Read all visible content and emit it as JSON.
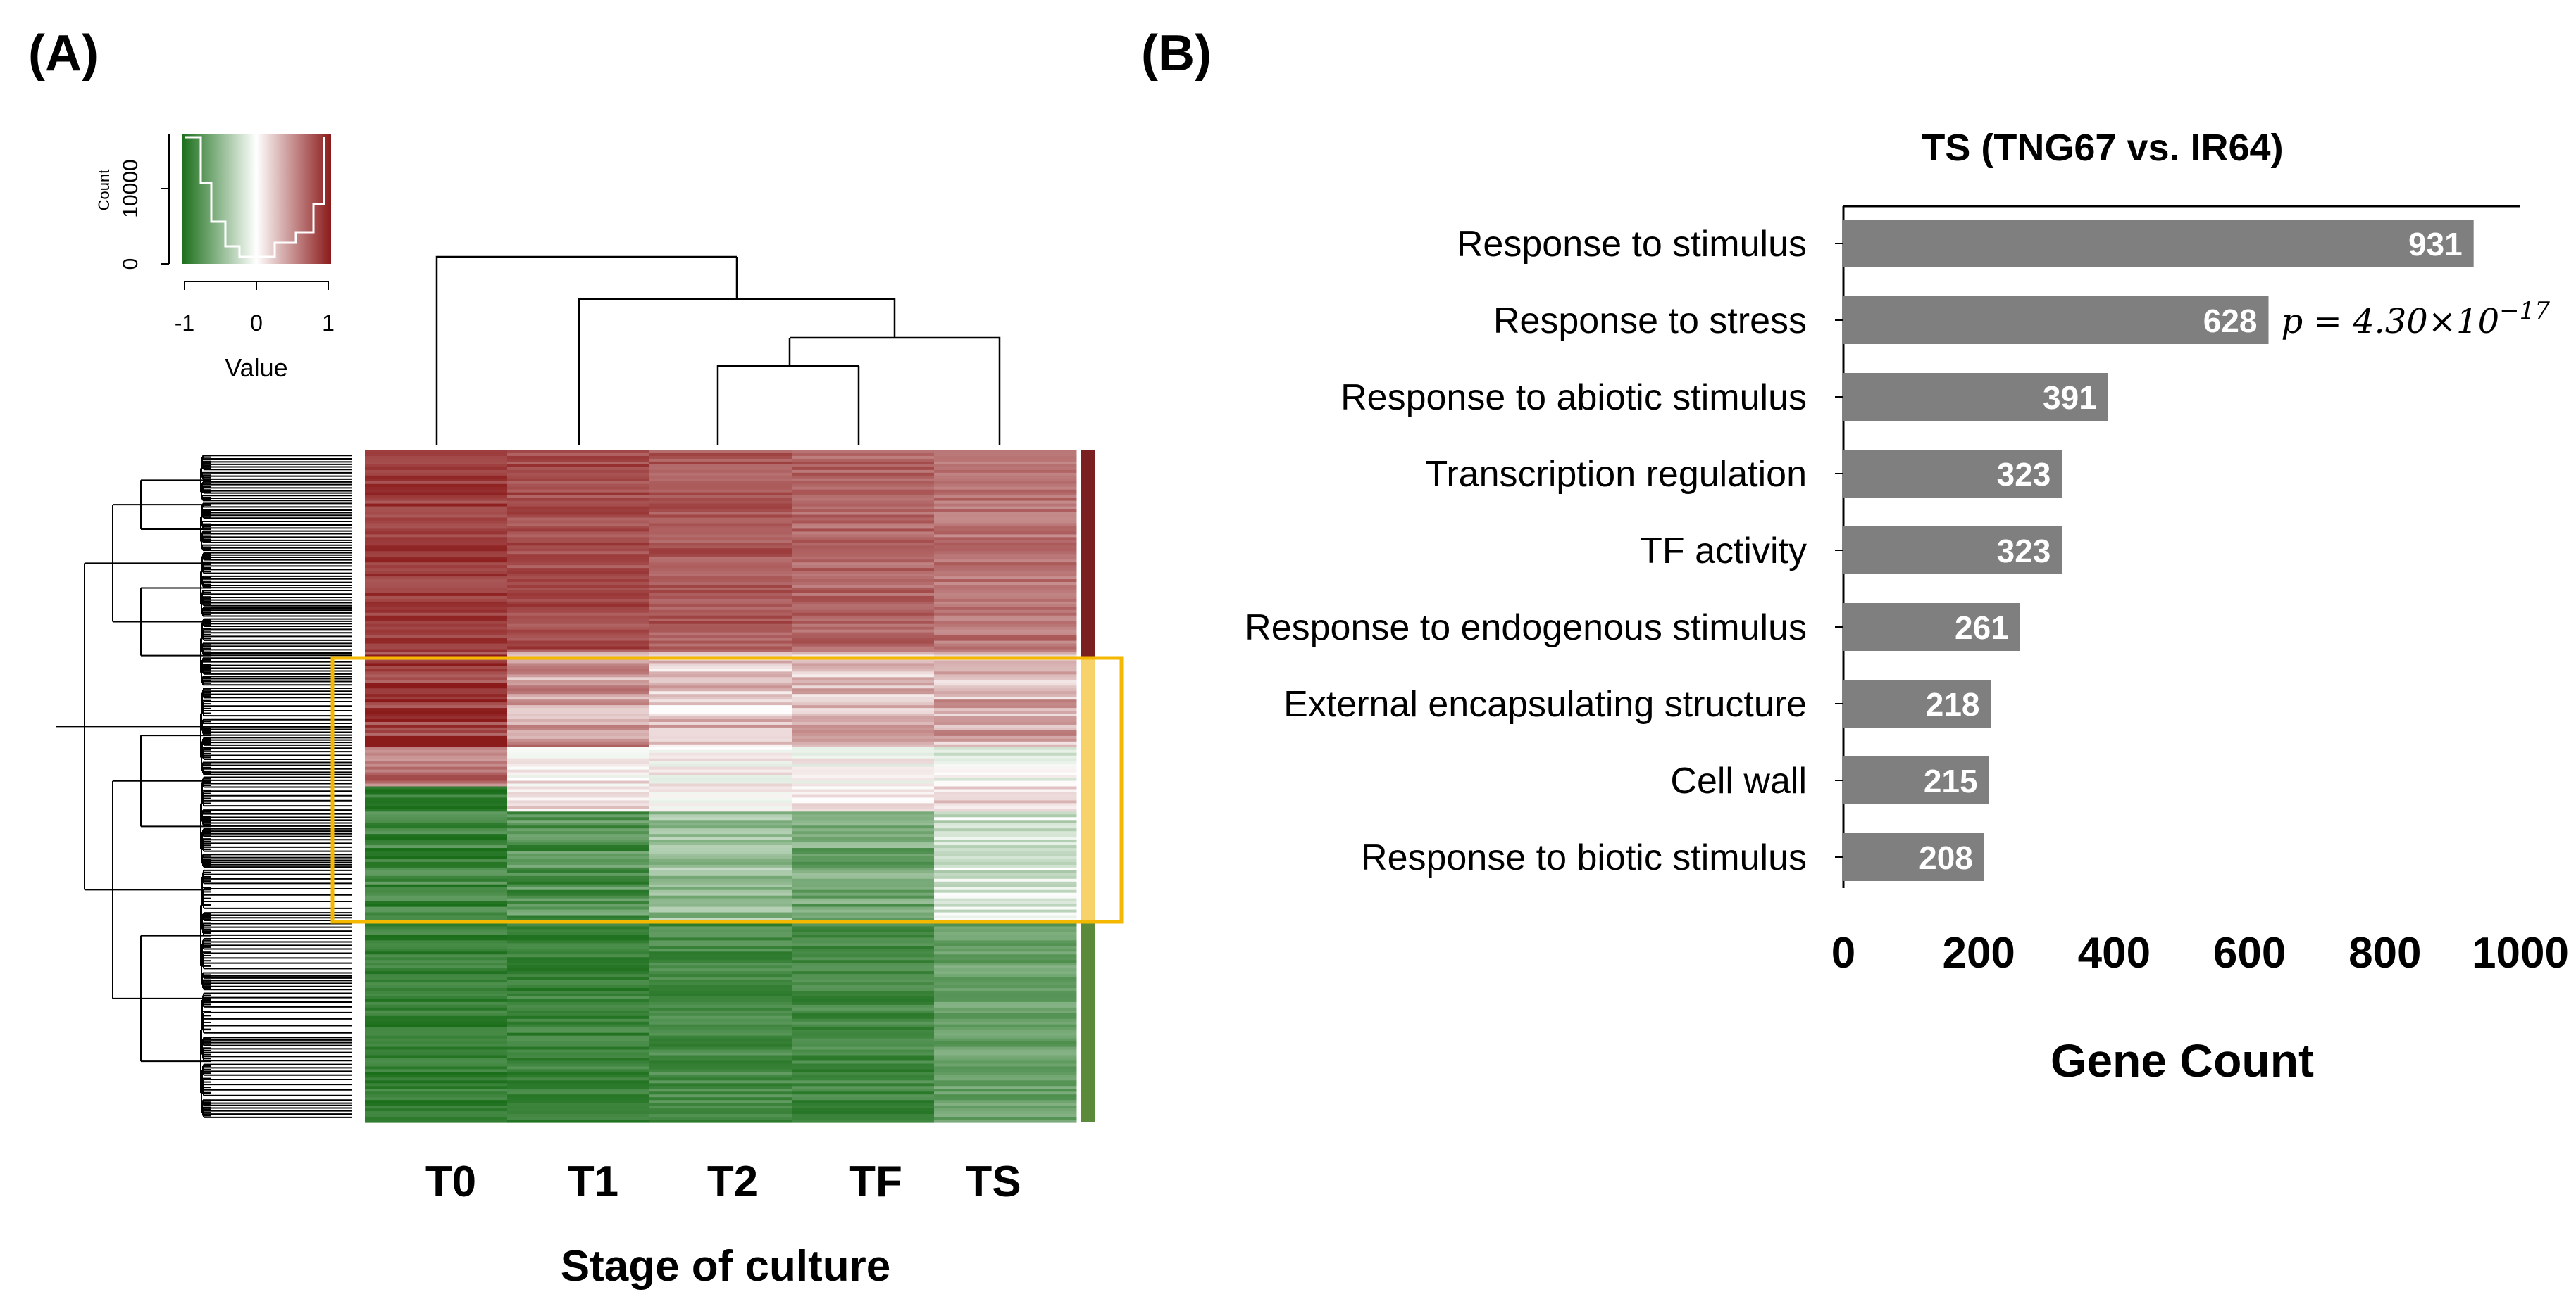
{
  "panel_a": {
    "label": "(A)",
    "color_key": {
      "ylabel": "Count",
      "yticks": [
        "0",
        "10000"
      ],
      "xticks": [
        "-1",
        "0",
        "1"
      ],
      "xlabel": "Value",
      "value_range": [
        -1,
        1
      ],
      "count_max": 15000,
      "colors": {
        "low": "#1a6e1a",
        "mid": "#ffffff",
        "high": "#8b1a1a"
      }
    },
    "heatmap": {
      "columns": [
        "T0",
        "T1",
        "T2",
        "TF",
        "TS"
      ],
      "xlabel": "Stage of culture",
      "highlight_color": "#f5b800",
      "cluster_bar_colors": [
        "#7a2020",
        "#f7d26a",
        "#5a8a3a"
      ]
    }
  },
  "panel_b": {
    "label": "(B)"
  },
  "chart_data": {
    "type": "bar",
    "orientation": "horizontal",
    "title": "TS (TNG67 vs. IR64)",
    "categories": [
      "Response to stimulus",
      "Response to stress",
      "Response to abiotic stimulus",
      "Transcription regulation",
      "TF activity",
      "Response to endogenous stimulus",
      "External encapsulating structure",
      "Cell wall",
      "Response to biotic stimulus"
    ],
    "values": [
      931,
      628,
      391,
      323,
      323,
      261,
      218,
      215,
      208
    ],
    "data_labels": [
      "931",
      "628",
      "391",
      "323",
      "323",
      "261",
      "218",
      "215",
      "208"
    ],
    "xlabel": "Gene Count",
    "xlim": [
      0,
      1000
    ],
    "xticks": [
      "0",
      "200",
      "400",
      "600",
      "800",
      "1000"
    ],
    "annotation": {
      "category": "Response to stress",
      "p_prefix": "p = 4.30×10",
      "p_exponent": "−17"
    },
    "bar_color": "#7f7f7f",
    "label_color": "#ffffff"
  }
}
